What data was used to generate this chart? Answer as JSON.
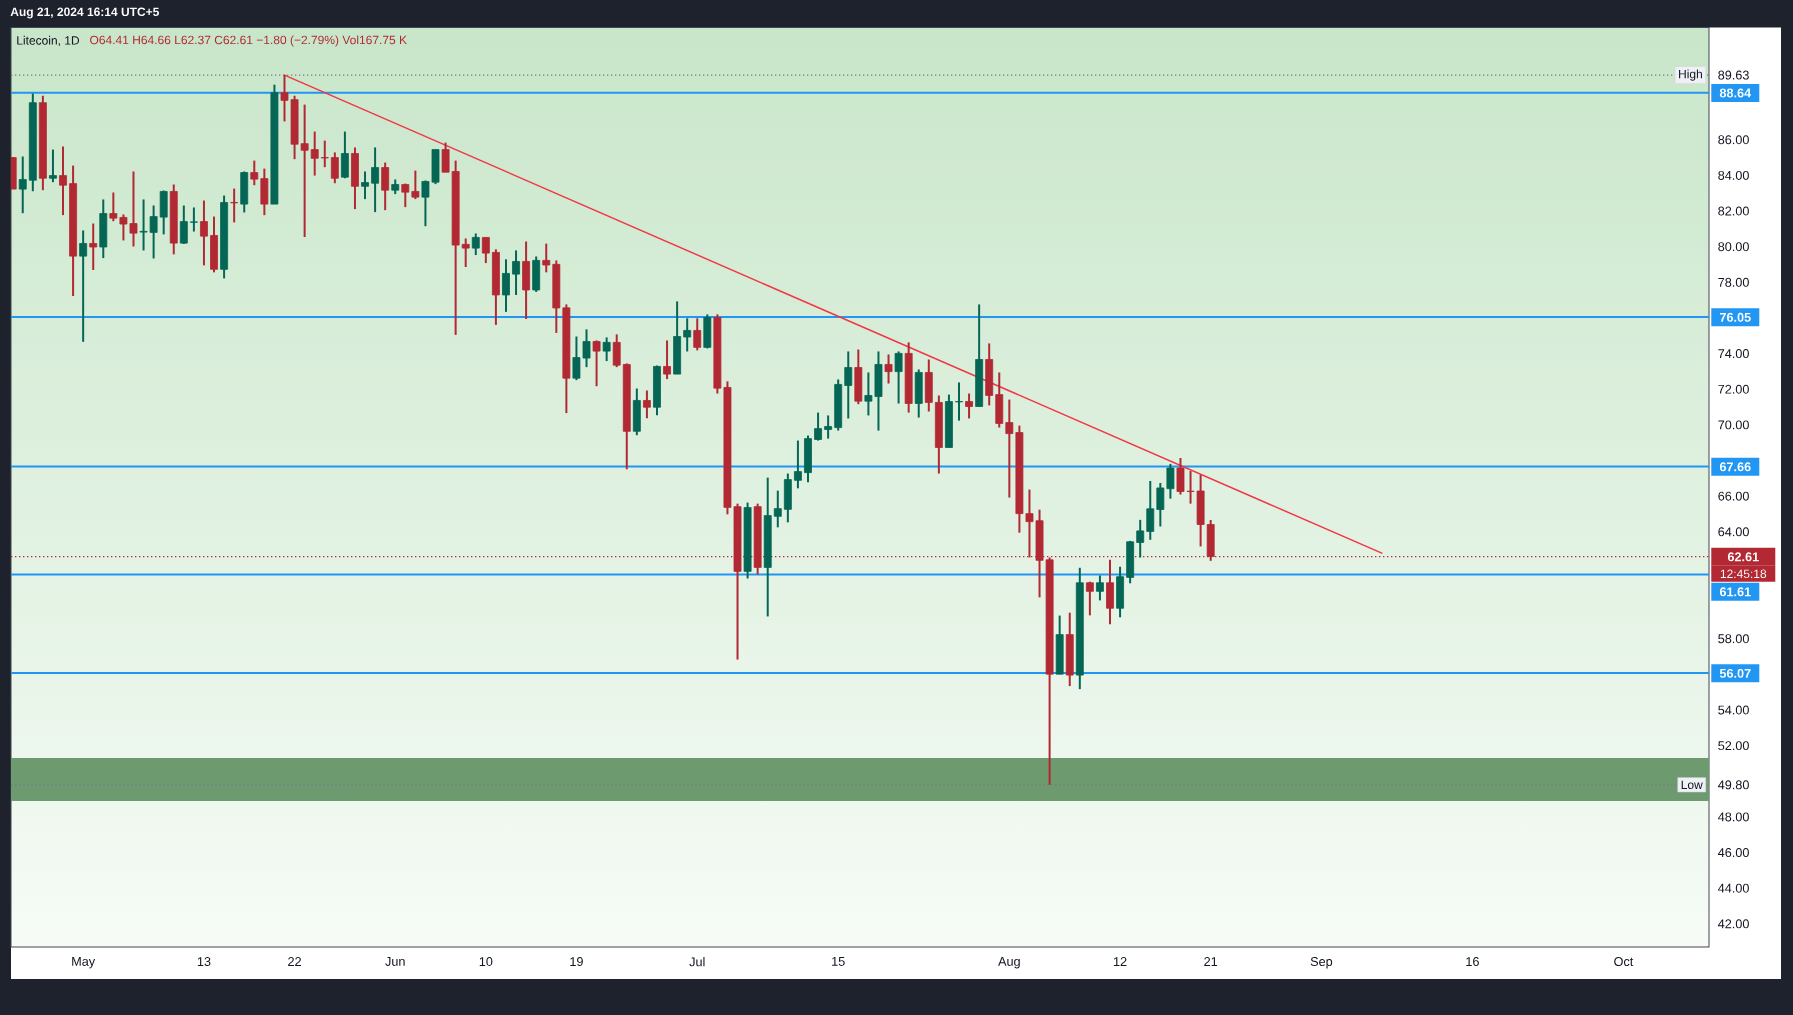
{
  "chart_data": {
    "type": "candlestick",
    "title": "Litecoin, 1D",
    "subtitle": "O64.41 H64.66 L62.37 C62.61 −1.80 (−2.79%) Vol167.75 K",
    "annotations": [
      "Aug 21, 2024 16:14 UTC+5",
      {
        "text": "High",
        "y": 89.63
      },
      "12:45:18",
      {
        "text": "Low",
        "y": 49.8
      }
    ],
    "series": [
      {
        "type": "line",
        "x": [
          "2024-05-21",
          "2024-09-07"
        ],
        "values": [
          89.63,
          62.8
        ],
        "color": "#f23645"
      },
      {
        "x": [
          "2024-04-24",
          "2024-04-25",
          "2024-04-26",
          "2024-04-27",
          "2024-04-28",
          "2024-04-29",
          "2024-04-30",
          "2024-05-01",
          "2024-05-02",
          "2024-05-03",
          "2024-05-04",
          "2024-05-05",
          "2024-05-06",
          "2024-05-07",
          "2024-05-08",
          "2024-05-09",
          "2024-05-10",
          "2024-05-11",
          "2024-05-12",
          "2024-05-13",
          "2024-05-14",
          "2024-05-15",
          "2024-05-16",
          "2024-05-17",
          "2024-05-18",
          "2024-05-19",
          "2024-05-20",
          "2024-05-21",
          "2024-05-22",
          "2024-05-23",
          "2024-05-24",
          "2024-05-25",
          "2024-05-26",
          "2024-05-27",
          "2024-05-28",
          "2024-05-29",
          "2024-05-30",
          "2024-05-31",
          "2024-06-01",
          "2024-06-02",
          "2024-06-03",
          "2024-06-04",
          "2024-06-05",
          "2024-06-06",
          "2024-06-07",
          "2024-06-08",
          "2024-06-09",
          "2024-06-10",
          "2024-06-11",
          "2024-06-12",
          "2024-06-13",
          "2024-06-14",
          "2024-06-15",
          "2024-06-16",
          "2024-06-17",
          "2024-06-18",
          "2024-06-19",
          "2024-06-20",
          "2024-06-21",
          "2024-06-22",
          "2024-06-23",
          "2024-06-24",
          "2024-06-25",
          "2024-06-26",
          "2024-06-27",
          "2024-06-28",
          "2024-06-29",
          "2024-06-30",
          "2024-07-01",
          "2024-07-02",
          "2024-07-03",
          "2024-07-04",
          "2024-07-05",
          "2024-07-06",
          "2024-07-07",
          "2024-07-08",
          "2024-07-09",
          "2024-07-10",
          "2024-07-11",
          "2024-07-12",
          "2024-07-13",
          "2024-07-14",
          "2024-07-15",
          "2024-07-16",
          "2024-07-17",
          "2024-07-18",
          "2024-07-19",
          "2024-07-20",
          "2024-07-21",
          "2024-07-22",
          "2024-07-23",
          "2024-07-24",
          "2024-07-25",
          "2024-07-26",
          "2024-07-27",
          "2024-07-28",
          "2024-07-29",
          "2024-07-30",
          "2024-07-31",
          "2024-08-01",
          "2024-08-02",
          "2024-08-03",
          "2024-08-04",
          "2024-08-05",
          "2024-08-06",
          "2024-08-07",
          "2024-08-08",
          "2024-08-09",
          "2024-08-10",
          "2024-08-11",
          "2024-08-12",
          "2024-08-13",
          "2024-08-14",
          "2024-08-15",
          "2024-08-16",
          "2024-08-17",
          "2024-08-18",
          "2024-08-19",
          "2024-08-20",
          "2024-08-21"
        ],
        "ohlc": [
          [
            85.0,
            85.0,
            83.23,
            83.23
          ],
          [
            83.23,
            85.06,
            81.88,
            83.77
          ],
          [
            83.73,
            88.6,
            83.11,
            88.08
          ],
          [
            88.08,
            88.47,
            83.17,
            83.84
          ],
          [
            83.84,
            85.45,
            83.62,
            83.99
          ],
          [
            83.99,
            85.62,
            81.77,
            83.45
          ],
          [
            83.54,
            84.55,
            77.23,
            79.47
          ],
          [
            79.47,
            80.91,
            74.66,
            80.18
          ],
          [
            80.18,
            81.3,
            78.69,
            79.98
          ],
          [
            79.98,
            82.65,
            79.36,
            81.86
          ],
          [
            81.86,
            83.04,
            81.43,
            81.6
          ],
          [
            81.64,
            81.81,
            80.35,
            81.27
          ],
          [
            81.3,
            84.22,
            80.01,
            80.76
          ],
          [
            80.82,
            82.65,
            79.79,
            80.86
          ],
          [
            80.8,
            82.31,
            79.34,
            81.69
          ],
          [
            81.66,
            83.15,
            80.69,
            83.1
          ],
          [
            83.1,
            83.49,
            79.57,
            80.2
          ],
          [
            80.2,
            82.31,
            80.15,
            81.41
          ],
          [
            81.37,
            82.2,
            80.85,
            81.39
          ],
          [
            81.41,
            82.59,
            78.95,
            80.59
          ],
          [
            80.63,
            81.69,
            78.56,
            78.73
          ],
          [
            78.73,
            82.87,
            78.22,
            82.48
          ],
          [
            82.48,
            83.26,
            81.36,
            82.46
          ],
          [
            82.39,
            84.22,
            81.92,
            84.16
          ],
          [
            84.16,
            84.83,
            83.45,
            83.79
          ],
          [
            83.82,
            84.38,
            81.77,
            82.39
          ],
          [
            82.39,
            89.09,
            82.39,
            88.64
          ],
          [
            88.64,
            89.63,
            87.03,
            88.21
          ],
          [
            88.25,
            88.47,
            84.91,
            85.75
          ],
          [
            85.78,
            87.97,
            80.54,
            85.41
          ],
          [
            85.45,
            86.46,
            83.99,
            84.96
          ],
          [
            85.0,
            85.95,
            84.46,
            84.98
          ],
          [
            85.0,
            85.29,
            83.56,
            83.84
          ],
          [
            83.9,
            86.46,
            83.84,
            85.23
          ],
          [
            85.23,
            85.57,
            82.11,
            83.39
          ],
          [
            83.39,
            84.22,
            82.67,
            83.6
          ],
          [
            83.56,
            85.57,
            81.94,
            84.44
          ],
          [
            84.44,
            84.72,
            82.05,
            83.17
          ],
          [
            83.17,
            83.77,
            82.95,
            83.49
          ],
          [
            83.49,
            83.54,
            82.22,
            83.06
          ],
          [
            83.1,
            84.27,
            82.67,
            82.78
          ],
          [
            82.78,
            83.71,
            81.15,
            83.66
          ],
          [
            83.62,
            85.45,
            83.51,
            85.45
          ],
          [
            85.45,
            85.84,
            84.18,
            84.18
          ],
          [
            84.22,
            84.83,
            75.05,
            80.09
          ],
          [
            80.13,
            80.46,
            78.86,
            79.92
          ],
          [
            79.92,
            80.74,
            79.53,
            80.52
          ],
          [
            80.52,
            80.52,
            79.08,
            79.64
          ],
          [
            79.68,
            79.85,
            75.61,
            77.29
          ],
          [
            77.29,
            79.29,
            76.34,
            78.5
          ],
          [
            78.46,
            79.79,
            77.29,
            79.17
          ],
          [
            79.17,
            80.29,
            75.94,
            77.57
          ],
          [
            77.57,
            79.45,
            77.46,
            79.23
          ],
          [
            79.23,
            80.17,
            78.56,
            78.97
          ],
          [
            79.01,
            79.23,
            75.16,
            76.56
          ],
          [
            76.57,
            76.76,
            70.66,
            72.62
          ],
          [
            72.62,
            74.96,
            72.51,
            73.78
          ],
          [
            73.75,
            75.36,
            73.24,
            74.68
          ],
          [
            74.68,
            74.74,
            72.17,
            74.14
          ],
          [
            74.14,
            74.91,
            73.58,
            74.63
          ],
          [
            74.63,
            75.08,
            73.24,
            73.35
          ],
          [
            73.39,
            73.45,
            67.51,
            69.64
          ],
          [
            69.64,
            72.04,
            69.42,
            71.37
          ],
          [
            71.37,
            71.93,
            70.37,
            70.99
          ],
          [
            70.99,
            73.33,
            70.54,
            73.28
          ],
          [
            73.28,
            74.74,
            72.57,
            72.85
          ],
          [
            72.85,
            76.93,
            72.85,
            74.96
          ],
          [
            74.93,
            75.98,
            74.12,
            75.3
          ],
          [
            75.3,
            75.98,
            74.18,
            74.35
          ],
          [
            74.35,
            76.2,
            74.29,
            76.03
          ],
          [
            76.03,
            76.2,
            71.76,
            72.06
          ],
          [
            72.1,
            72.44,
            64.98,
            65.37
          ],
          [
            65.41,
            65.58,
            56.83,
            61.78
          ],
          [
            61.78,
            65.64,
            61.38,
            65.36
          ],
          [
            65.41,
            65.58,
            61.61,
            62.0
          ],
          [
            62.0,
            67.04,
            59.25,
            64.91
          ],
          [
            64.87,
            66.31,
            64.25,
            65.3
          ],
          [
            65.26,
            67.27,
            64.53,
            66.93
          ],
          [
            66.89,
            69.12,
            66.44,
            67.38
          ],
          [
            67.32,
            69.4,
            66.78,
            69.23
          ],
          [
            69.18,
            70.69,
            69.12,
            69.79
          ],
          [
            69.74,
            70.53,
            69.23,
            69.91
          ],
          [
            69.85,
            72.55,
            69.68,
            72.27
          ],
          [
            72.21,
            74.12,
            70.36,
            73.22
          ],
          [
            73.22,
            74.23,
            71.16,
            71.33
          ],
          [
            71.33,
            72.94,
            70.53,
            71.65
          ],
          [
            71.59,
            74.12,
            69.68,
            73.39
          ],
          [
            73.39,
            73.95,
            72.32,
            72.99
          ],
          [
            72.99,
            74.12,
            71.2,
            74.01
          ],
          [
            74.01,
            74.63,
            70.69,
            71.2
          ],
          [
            71.2,
            73.11,
            70.41,
            72.94
          ],
          [
            72.94,
            73.67,
            70.75,
            71.26
          ],
          [
            71.26,
            71.65,
            67.27,
            68.73
          ],
          [
            68.73,
            71.7,
            68.73,
            71.31
          ],
          [
            71.29,
            72.38,
            70.24,
            71.31
          ],
          [
            71.31,
            71.76,
            70.36,
            71.03
          ],
          [
            71.03,
            76.76,
            71.03,
            73.67
          ],
          [
            73.67,
            74.57,
            71.09,
            71.65
          ],
          [
            71.7,
            72.94,
            69.85,
            70.08
          ],
          [
            70.13,
            71.42,
            65.92,
            69.51
          ],
          [
            69.57,
            69.96,
            63.95,
            65.02
          ],
          [
            65.02,
            66.37,
            62.56,
            64.57
          ],
          [
            64.62,
            65.24,
            60.32,
            62.4
          ],
          [
            62.43,
            62.56,
            49.8,
            56.01
          ],
          [
            56.01,
            59.3,
            56.01,
            58.23
          ],
          [
            58.23,
            59.46,
            55.34,
            55.96
          ],
          [
            55.96,
            61.98,
            55.17,
            61.14
          ],
          [
            61.14,
            61.2,
            59.31,
            60.66
          ],
          [
            60.66,
            61.55,
            60.15,
            61.14
          ],
          [
            61.14,
            62.43,
            58.81,
            59.71
          ],
          [
            59.71,
            62.04,
            59.2,
            61.48
          ],
          [
            61.44,
            63.49,
            61.11,
            63.44
          ],
          [
            63.4,
            64.67,
            62.56,
            64.05
          ],
          [
            64.02,
            66.85,
            63.55,
            65.29
          ],
          [
            65.25,
            66.74,
            64.3,
            66.46
          ],
          [
            66.42,
            67.81,
            65.86,
            67.58
          ],
          [
            67.58,
            68.14,
            66.09,
            66.26
          ],
          [
            66.28,
            67.41,
            65.58,
            66.26
          ],
          [
            66.29,
            67.19,
            63.18,
            64.41
          ],
          [
            64.41,
            64.66,
            62.37,
            62.61
          ]
        ],
        "colors": [
          "#b22833",
          "#056656",
          "#056656",
          "#b22833",
          "#056656",
          "#b22833",
          "#b22833",
          "#056656",
          "#b22833",
          "#056656",
          "#b22833",
          "#b22833",
          "#b22833",
          "#056656",
          "#056656",
          "#056656",
          "#b22833",
          "#056656",
          "#056656",
          "#b22833",
          "#b22833",
          "#056656",
          "#b22833",
          "#056656",
          "#b22833",
          "#b22833",
          "#056656",
          "#b22833",
          "#b22833",
          "#b22833",
          "#b22833",
          "#b22833",
          "#b22833",
          "#056656",
          "#b22833",
          "#056656",
          "#056656",
          "#b22833",
          "#056656",
          "#b22833",
          "#b22833",
          "#056656",
          "#056656",
          "#b22833",
          "#b22833",
          "#b22833",
          "#056656",
          "#b22833",
          "#b22833",
          "#056656",
          "#056656",
          "#b22833",
          "#056656",
          "#b22833",
          "#b22833",
          "#b22833",
          "#056656",
          "#056656",
          "#b22833",
          "#056656",
          "#b22833",
          "#b22833",
          "#056656",
          "#b22833",
          "#056656",
          "#b22833",
          "#056656",
          "#056656",
          "#b22833",
          "#056656",
          "#b22833",
          "#b22833",
          "#b22833",
          "#056656",
          "#b22833",
          "#056656",
          "#056656",
          "#056656",
          "#056656",
          "#056656",
          "#056656",
          "#056656",
          "#056656",
          "#056656",
          "#b22833",
          "#056656",
          "#056656",
          "#b22833",
          "#056656",
          "#b22833",
          "#056656",
          "#b22833",
          "#b22833",
          "#056656",
          "#056656",
          "#b22833",
          "#056656",
          "#b22833",
          "#b22833",
          "#b22833",
          "#b22833",
          "#b22833",
          "#b22833",
          "#b22833",
          "#056656",
          "#b22833",
          "#056656",
          "#b22833",
          "#056656",
          "#b22833",
          "#056656",
          "#056656",
          "#056656",
          "#056656",
          "#056656",
          "#056656",
          "#b22833",
          "#b22833",
          "#b22833",
          "#b22833"
        ]
      }
    ],
    "xlim": [
      "2024-04-23T20:00",
      "2024-10-09T12:00"
    ],
    "xticks": [
      {
        "value": "2024-05-01",
        "label": "May"
      },
      {
        "value": "2024-05-13",
        "label": "13"
      },
      {
        "value": "2024-05-22",
        "label": "22"
      },
      {
        "value": "2024-06-01",
        "label": "Jun"
      },
      {
        "value": "2024-06-10",
        "label": "10"
      },
      {
        "value": "2024-06-19",
        "label": "19"
      },
      {
        "value": "2024-07-01",
        "label": "Jul"
      },
      {
        "value": "2024-07-15",
        "label": "15"
      },
      {
        "value": "2024-08-01",
        "label": "Aug"
      },
      {
        "value": "2024-08-12",
        "label": "12"
      },
      {
        "value": "2024-08-21",
        "label": "21"
      },
      {
        "value": "2024-09-01",
        "label": "Sep"
      },
      {
        "value": "2024-09-16",
        "label": "16"
      },
      {
        "value": "2024-10-01",
        "label": "Oct"
      }
    ],
    "ylim": [
      40.7,
      92.3
    ],
    "yticks": [
      {
        "value": 42,
        "label": "42.00"
      },
      {
        "value": 44,
        "label": "44.00"
      },
      {
        "value": 46,
        "label": "46.00"
      },
      {
        "value": 48,
        "label": "48.00"
      },
      {
        "value": 49.8,
        "label": "49.80"
      },
      {
        "value": 52,
        "label": "52.00"
      },
      {
        "value": 54,
        "label": "54.00"
      },
      {
        "value": 58,
        "label": "58.00"
      },
      {
        "value": 64,
        "label": "64.00"
      },
      {
        "value": 66,
        "label": "66.00"
      },
      {
        "value": 70,
        "label": "70.00"
      },
      {
        "value": 72,
        "label": "72.00"
      },
      {
        "value": 74,
        "label": "74.00"
      },
      {
        "value": 78,
        "label": "78.00"
      },
      {
        "value": 80,
        "label": "80.00"
      },
      {
        "value": 82,
        "label": "82.00"
      },
      {
        "value": 84,
        "label": "84.00"
      },
      {
        "value": 86,
        "label": "86.00"
      },
      89.63
    ],
    "ref_lines": [
      {
        "axis": "y",
        "value": 89.63,
        "color": "#787b86",
        "line_style": "dotted"
      },
      {
        "axis": "y",
        "value": 88.64,
        "label": "88.64",
        "color": "#2196f3"
      },
      {
        "axis": "y",
        "value": 76.05,
        "label": "76.05",
        "color": "#2196f3"
      },
      {
        "axis": "y",
        "value": 67.66,
        "label": "67.66",
        "color": "#2196f3"
      },
      {
        "axis": "y",
        "value": 62.61,
        "label": "62.61",
        "color": "#b22833",
        "line_style": "dotted"
      },
      {
        "axis": "y",
        "value": 61.61,
        "label": "61.61",
        "color": "#2196f3"
      },
      {
        "axis": "y",
        "value": 56.07,
        "label": "56.07",
        "color": "#2196f3"
      },
      {
        "axis": "y",
        "value": 49.8,
        "color": "#787b86",
        "line_style": "dotted"
      }
    ],
    "bands": [
      {
        "axis": "y",
        "from": 48.9,
        "to": 51.3,
        "color": "#6e9a70"
      }
    ]
  }
}
